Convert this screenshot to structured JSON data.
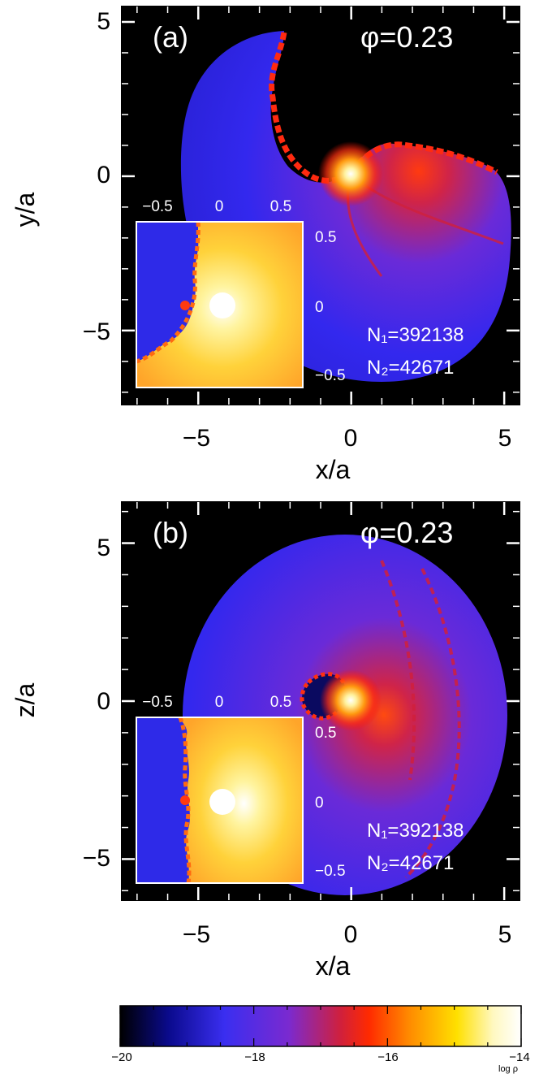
{
  "colors": {
    "background": "#000000",
    "axis": "#000000",
    "frame_on_dark": "#ffffff",
    "annotation": "#ffffff",
    "cmap": [
      "#000000",
      "#0a0a8c",
      "#3a2ef0",
      "#7a2ad0",
      "#c8203c",
      "#ff2a00",
      "#ff8a00",
      "#ffe000",
      "#fff8c0",
      "#ffffff"
    ]
  },
  "chart_data": [
    {
      "type": "heatmap",
      "panel_label": "(a)",
      "phase_label": "φ=0.23",
      "xlabel": "x/a",
      "ylabel": "y/a",
      "xlim": [
        -7.5,
        5.5
      ],
      "ylim": [
        -7.4,
        5.5
      ],
      "xticks": [
        -5,
        0,
        5
      ],
      "yticks": [
        -5,
        0,
        5
      ],
      "xtick_labels": [
        "−5",
        "0",
        "5"
      ],
      "ytick_labels": [
        "−5",
        "0",
        "5"
      ],
      "counts": [
        "N₁=392138",
        "N₂=42671"
      ],
      "inset": {
        "xlim": [
          -0.6,
          0.6
        ],
        "ylim": [
          -0.6,
          0.6
        ],
        "xtick_labels": [
          "−0.5",
          "0",
          "0.5"
        ],
        "ytick_labels": [
          "0.5",
          "0",
          "−0.5"
        ]
      }
    },
    {
      "type": "heatmap",
      "panel_label": "(b)",
      "phase_label": "φ=0.23",
      "xlabel": "x/a",
      "ylabel": "z/a",
      "xlim": [
        -7.5,
        5.5
      ],
      "ylim": [
        -6.3,
        6.3
      ],
      "xticks": [
        -5,
        0,
        5
      ],
      "yticks": [
        -5,
        0,
        5
      ],
      "xtick_labels": [
        "−5",
        "0",
        "5"
      ],
      "ytick_labels": [
        "−5",
        "0",
        "5"
      ],
      "counts": [
        "N₁=392138",
        "N₂=42671"
      ],
      "inset": {
        "xlim": [
          -0.6,
          0.6
        ],
        "ylim": [
          -0.6,
          0.6
        ],
        "xtick_labels": [
          "−0.5",
          "0",
          "0.5"
        ],
        "ytick_labels": [
          "0.5",
          "0",
          "−0.5"
        ]
      }
    }
  ],
  "colorbar": {
    "range": [
      -20,
      -14
    ],
    "ticks": [
      -20,
      -18,
      -16,
      -14
    ],
    "tick_labels": [
      "−20",
      "−18",
      "−16",
      "−14"
    ],
    "label": "log ρ"
  }
}
